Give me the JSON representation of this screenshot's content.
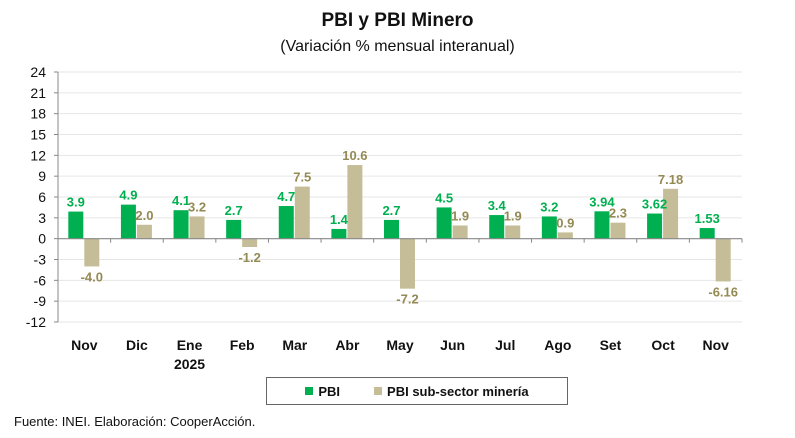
{
  "chart_data": {
    "type": "bar",
    "title": "PBI y PBI Minero",
    "subtitle": "(Variación % mensual interanual)",
    "xlabel": "",
    "ylabel": "",
    "categories": [
      "Nov",
      "Dic",
      "Ene",
      "Feb",
      "Mar",
      "Abr",
      "May",
      "Jun",
      "Jul",
      "Ago",
      "Set",
      "Oct",
      "Nov"
    ],
    "category_sublabels": [
      "",
      "",
      "2025",
      "",
      "",
      "",
      "",
      "",
      "",
      "",
      "",
      "",
      ""
    ],
    "series": [
      {
        "name": "PBI",
        "color": "#00B050",
        "label_color": "#00B050",
        "values": [
          3.9,
          4.9,
          4.1,
          2.7,
          4.7,
          1.4,
          2.7,
          4.5,
          3.4,
          3.2,
          3.94,
          3.62,
          1.53
        ],
        "labels": [
          "3.9",
          "4.9",
          "4.1",
          "2.7",
          "4.7",
          "1.4",
          "2.7",
          "4.5",
          "3.4",
          "3.2",
          "3.94",
          "3.62",
          "1.53"
        ]
      },
      {
        "name": "PBI sub-sector minería",
        "color": "#C4BD97",
        "label_color": "#948A54",
        "values": [
          -4.0,
          2.0,
          3.2,
          -1.2,
          7.5,
          10.6,
          -7.2,
          1.9,
          1.9,
          0.9,
          2.3,
          7.18,
          -6.16
        ],
        "labels": [
          "-4.0",
          "2.0",
          "3.2",
          "-1.2",
          "7.5",
          "10.6",
          "-7.2",
          "1.9",
          "1.9",
          "0.9",
          "2.3",
          "7.18",
          "-6.16"
        ]
      }
    ],
    "ylim": [
      -12,
      24
    ],
    "yticks": [
      24,
      21,
      18,
      15,
      12,
      9,
      6,
      3,
      0,
      -3,
      -6,
      -9,
      -12
    ],
    "grid": true,
    "legend_position": "bottom"
  },
  "footer": "Fuente: INEI. Elaboración: CooperAcción."
}
